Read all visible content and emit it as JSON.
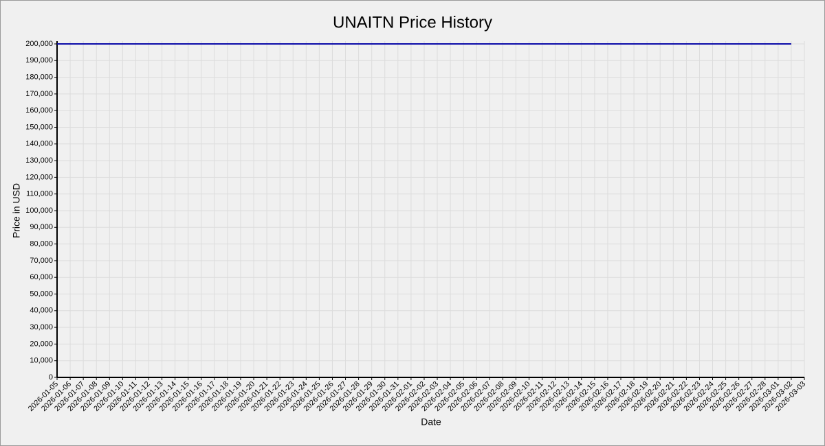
{
  "chart_data": {
    "type": "line",
    "title": "UNAITN Price History",
    "x_label": "Date",
    "y_label": "Price in USD",
    "color": "#0a0aa8",
    "grid": true,
    "x": [
      "2026-01-05",
      "2026-01-06",
      "2026-01-07",
      "2026-01-08",
      "2026-01-09",
      "2026-01-10",
      "2026-01-11",
      "2026-01-12",
      "2026-01-13",
      "2026-01-14",
      "2026-01-15",
      "2026-01-16",
      "2026-01-17",
      "2026-01-18",
      "2026-01-19",
      "2026-01-20",
      "2026-01-21",
      "2026-01-22",
      "2026-01-23",
      "2026-01-24",
      "2026-01-25",
      "2026-01-26",
      "2026-01-27",
      "2026-01-28",
      "2026-01-29",
      "2026-01-30",
      "2026-01-31",
      "2026-02-01",
      "2026-02-02",
      "2026-02-03",
      "2026-02-04",
      "2026-02-05",
      "2026-02-06",
      "2026-02-07",
      "2026-02-08",
      "2026-02-09",
      "2026-02-10",
      "2026-02-11",
      "2026-02-12",
      "2026-02-13",
      "2026-02-14",
      "2026-02-15",
      "2026-02-16",
      "2026-02-17",
      "2026-02-18",
      "2026-02-19",
      "2026-02-20",
      "2026-02-21",
      "2026-02-22",
      "2026-02-23",
      "2026-02-24",
      "2026-02-25",
      "2026-02-26",
      "2026-02-27",
      "2026-02-28",
      "2026-03-01",
      "2026-03-02"
    ],
    "values": [
      200000,
      200000,
      200000,
      200000,
      200000,
      200000,
      200000,
      200000,
      200000,
      200000,
      200000,
      200000,
      200000,
      200000,
      200000,
      200000,
      200000,
      200000,
      200000,
      200000,
      200000,
      200000,
      200000,
      200000,
      200000,
      200000,
      200000,
      200000,
      200000,
      200000,
      200000,
      200000,
      200000,
      200000,
      200000,
      200000,
      200000,
      200000,
      200000,
      200000,
      200000,
      200000,
      200000,
      200000,
      200000,
      200000,
      200000,
      200000,
      200000,
      200000,
      200000,
      200000,
      200000,
      200000,
      200000,
      200000,
      200000
    ],
    "xlim": [
      "2026-01-05",
      "2026-03-03"
    ],
    "xticks": [
      "2026-01-05",
      "2026-01-06",
      "2026-01-07",
      "2026-01-08",
      "2026-01-09",
      "2026-01-10",
      "2026-01-11",
      "2026-01-12",
      "2026-01-13",
      "2026-01-14",
      "2026-01-15",
      "2026-01-16",
      "2026-01-17",
      "2026-01-18",
      "2026-01-19",
      "2026-01-20",
      "2026-01-21",
      "2026-01-22",
      "2026-01-23",
      "2026-01-24",
      "2026-01-25",
      "2026-01-26",
      "2026-01-27",
      "2026-01-28",
      "2026-01-29",
      "2026-01-30",
      "2026-01-31",
      "2026-02-01",
      "2026-02-02",
      "2026-02-03",
      "2026-02-04",
      "2026-02-05",
      "2026-02-06",
      "2026-02-07",
      "2026-02-08",
      "2026-02-09",
      "2026-02-10",
      "2026-02-11",
      "2026-02-12",
      "2026-02-13",
      "2026-02-14",
      "2026-02-15",
      "2026-02-16",
      "2026-02-17",
      "2026-02-18",
      "2026-02-19",
      "2026-02-20",
      "2026-02-21",
      "2026-02-22",
      "2026-02-23",
      "2026-02-24",
      "2026-02-25",
      "2026-02-26",
      "2026-02-27",
      "2026-02-28",
      "2026-03-01",
      "2026-03-02",
      "2026-03-03"
    ],
    "ylim": [
      0,
      200000
    ],
    "yticks": [
      0,
      {
        "value": 10000,
        "label": "10,000"
      },
      {
        "value": 20000,
        "label": "20,000"
      },
      {
        "value": 30000,
        "label": "30,000"
      },
      {
        "value": 40000,
        "label": "40,000"
      },
      {
        "value": 50000,
        "label": "50,000"
      },
      {
        "value": 60000,
        "label": "60,000"
      },
      {
        "value": 70000,
        "label": "70,000"
      },
      {
        "value": 80000,
        "label": "80,000"
      },
      {
        "value": 90000,
        "label": "90,000"
      },
      {
        "value": 100000,
        "label": "100,000"
      },
      {
        "value": 110000,
        "label": "110,000"
      },
      {
        "value": 120000,
        "label": "120,000"
      },
      {
        "value": 130000,
        "label": "130,000"
      },
      {
        "value": 140000,
        "label": "140,000"
      },
      {
        "value": 150000,
        "label": "150,000"
      },
      {
        "value": 160000,
        "label": "160,000"
      },
      {
        "value": 170000,
        "label": "170,000"
      },
      {
        "value": 180000,
        "label": "180,000"
      },
      {
        "value": 190000,
        "label": "190,000"
      },
      {
        "value": 200000,
        "label": "200,000"
      }
    ]
  }
}
